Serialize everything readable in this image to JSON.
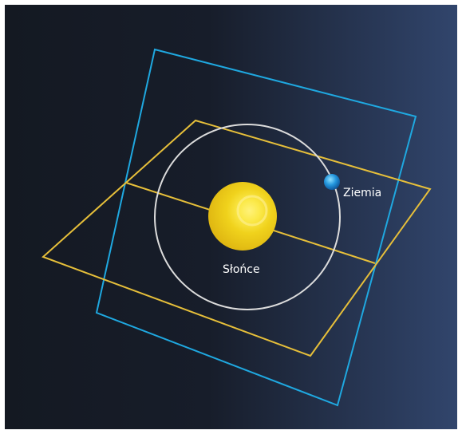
{
  "labels": {
    "sun": "Słońce",
    "earth": "Ziemia"
  },
  "colors": {
    "background_left": "#141a24",
    "background_right": "#30446a",
    "ecliptic_plane": "#e6bf3a",
    "equatorial_plane": "#1fa8e0",
    "orbit": "#dcdcdc",
    "sun": "#f4d21a",
    "earth": "#1e8fd6"
  }
}
